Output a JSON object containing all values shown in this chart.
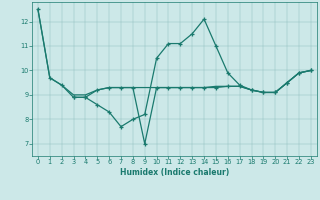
{
  "xlabel": "Humidex (Indice chaleur)",
  "bg_color": "#cce8e8",
  "line_color": "#1a7a6e",
  "xlim": [
    -0.5,
    23.5
  ],
  "ylim": [
    6.5,
    12.8
  ],
  "yticks": [
    7,
    8,
    9,
    10,
    11,
    12
  ],
  "xticks": [
    0,
    1,
    2,
    3,
    4,
    5,
    6,
    7,
    8,
    9,
    10,
    11,
    12,
    13,
    14,
    15,
    16,
    17,
    18,
    19,
    20,
    21,
    22,
    23
  ],
  "line1_x": [
    0,
    1,
    2,
    3,
    4,
    5,
    6,
    7,
    8,
    9,
    10,
    11,
    12,
    13,
    14,
    15,
    16,
    17,
    18,
    19,
    20,
    21,
    22,
    23
  ],
  "line1_y": [
    12.5,
    9.7,
    9.4,
    8.9,
    8.9,
    8.6,
    8.3,
    7.7,
    8.0,
    8.2,
    10.5,
    11.1,
    11.1,
    11.5,
    12.1,
    11.0,
    9.9,
    9.4,
    9.2,
    9.1,
    9.1,
    9.5,
    9.9,
    10.0
  ],
  "line2_x": [
    0,
    1,
    2,
    3,
    4,
    5,
    6,
    7,
    8,
    9,
    10,
    11,
    12,
    13,
    14,
    15,
    16,
    17,
    18,
    19,
    20,
    21,
    22,
    23
  ],
  "line2_y": [
    12.5,
    9.7,
    9.4,
    9.0,
    9.0,
    9.2,
    9.3,
    9.3,
    9.3,
    9.3,
    9.3,
    9.3,
    9.3,
    9.3,
    9.3,
    9.35,
    9.35,
    9.35,
    9.2,
    9.1,
    9.1,
    9.5,
    9.9,
    10.0
  ],
  "line3_x": [
    3,
    4,
    5,
    6,
    7,
    8,
    9,
    10,
    11,
    12,
    13,
    14,
    15,
    16,
    17,
    18,
    19,
    20,
    21,
    22,
    23
  ],
  "line3_y": [
    8.9,
    8.9,
    9.2,
    9.3,
    9.3,
    9.3,
    7.0,
    9.3,
    9.3,
    9.3,
    9.3,
    9.3,
    9.3,
    9.35,
    9.35,
    9.2,
    9.1,
    9.1,
    9.5,
    9.9,
    10.0
  ]
}
